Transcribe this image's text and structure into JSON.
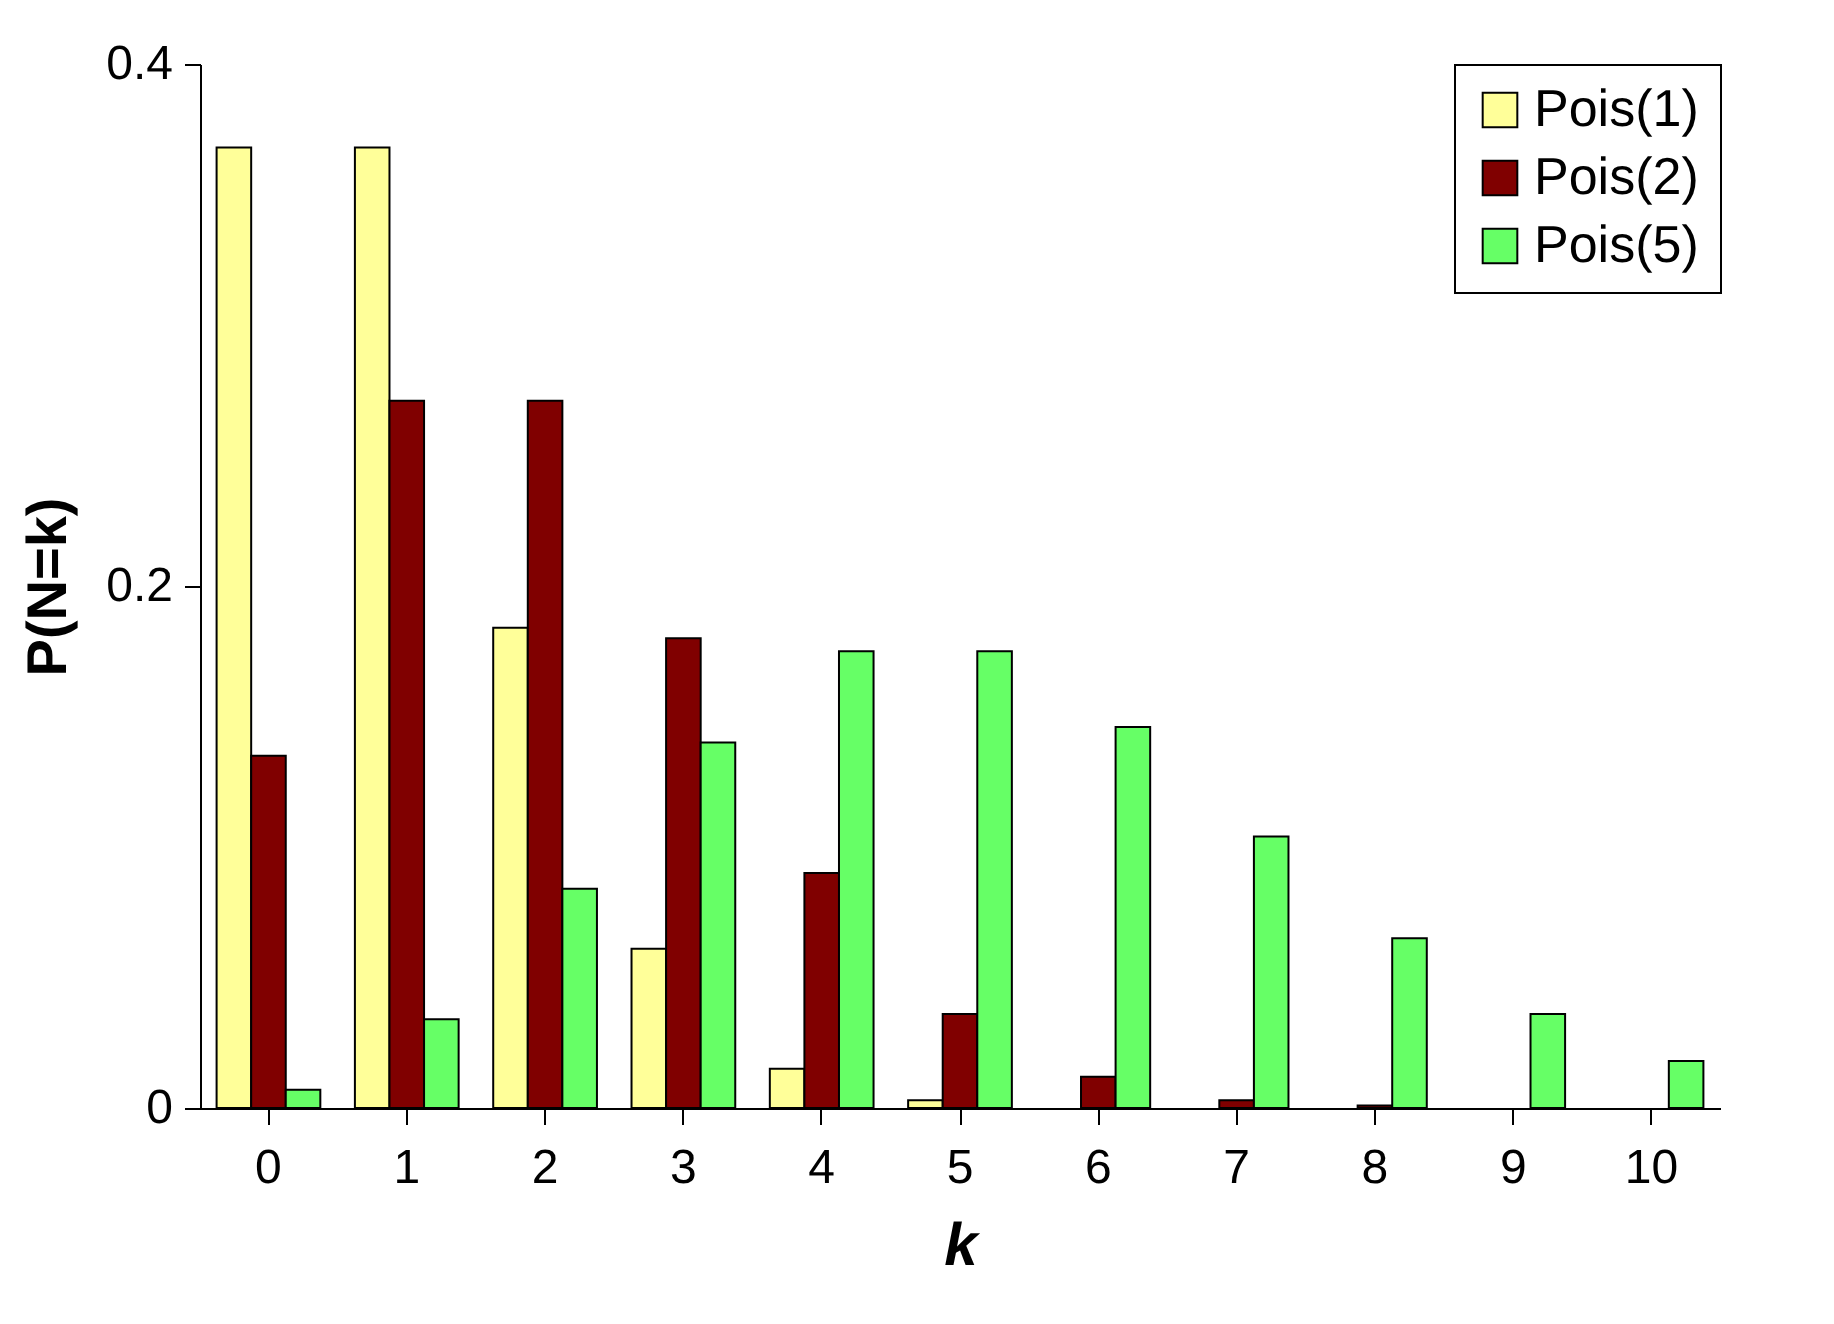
{
  "chart_data": {
    "type": "bar",
    "xlabel": "k",
    "ylabel": "P(N=k)",
    "categories": [
      "0",
      "1",
      "2",
      "3",
      "4",
      "5",
      "6",
      "7",
      "8",
      "9",
      "10"
    ],
    "series": [
      {
        "name": "Pois(1)",
        "color": "#ffff99",
        "values": [
          0.368,
          0.368,
          0.184,
          0.061,
          0.015,
          0.003,
          null,
          null,
          null,
          null,
          null
        ]
      },
      {
        "name": "Pois(2)",
        "color": "#800000",
        "values": [
          0.135,
          0.271,
          0.271,
          0.18,
          0.09,
          0.036,
          0.012,
          0.003,
          0.001,
          null,
          null
        ]
      },
      {
        "name": "Pois(5)",
        "color": "#66ff66",
        "values": [
          0.007,
          0.034,
          0.084,
          0.14,
          0.175,
          0.175,
          0.146,
          0.104,
          0.065,
          0.036,
          0.018
        ]
      }
    ],
    "ylim": [
      0,
      0.4
    ],
    "yticks": [
      0,
      0.2,
      0.4
    ],
    "grid": false,
    "legend": "top right"
  }
}
